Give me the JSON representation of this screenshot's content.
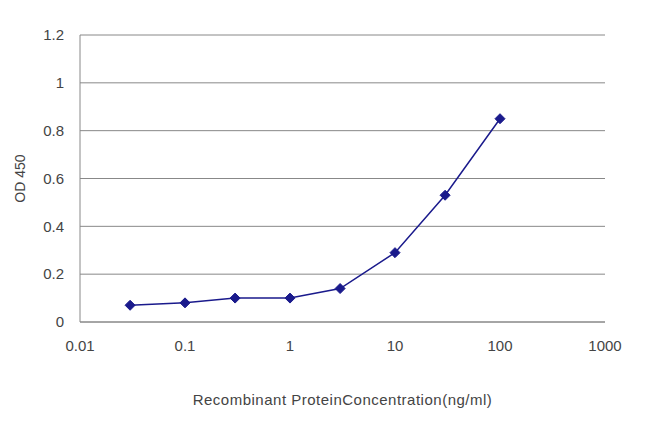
{
  "chart_data": {
    "type": "line",
    "x_label": "Recombinant ProteinConcentration(ng/ml)",
    "y_label": "OD 450",
    "x": [
      0.03,
      0.1,
      0.3,
      1,
      3,
      10,
      30,
      100
    ],
    "values": [
      0.07,
      0.08,
      0.1,
      0.1,
      0.14,
      0.29,
      0.53,
      0.85
    ],
    "color": "#1a1a8c",
    "marker": "diamond",
    "log": "x",
    "xlim": [
      0.01,
      1000
    ],
    "xticks": [
      0.01,
      0.1,
      1,
      10,
      100,
      1000
    ],
    "ylim": [
      0,
      1.2
    ],
    "yticks": [
      0,
      0.2,
      0.4,
      0.6,
      0.8,
      1,
      1.2
    ],
    "grid": true
  }
}
